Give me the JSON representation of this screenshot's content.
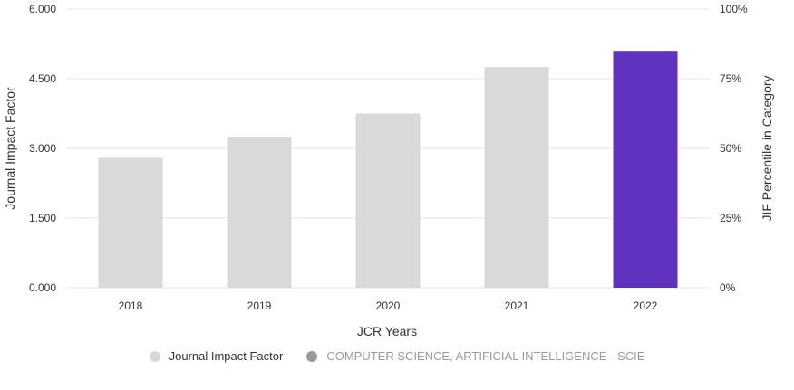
{
  "chart_data": {
    "type": "bar",
    "categories": [
      "2018",
      "2019",
      "2020",
      "2021",
      "2022"
    ],
    "series": [
      {
        "name": "Journal Impact Factor",
        "values": [
          2.8,
          3.25,
          3.75,
          4.75,
          5.1
        ]
      }
    ],
    "highlight_category": "2022",
    "xlabel": "JCR Years",
    "ylabel": "Journal Impact Factor",
    "ylabel_right": "JIF Percentile in Category",
    "ylim": [
      0,
      6
    ],
    "yticks": [
      "0.000",
      "1.500",
      "3.000",
      "4.500",
      "6.000"
    ],
    "ylim_right": [
      0,
      100
    ],
    "yticks_right": [
      "0%",
      "25%",
      "50%",
      "75%",
      "100%"
    ],
    "grid": true,
    "legend_position": "bottom",
    "legend": [
      {
        "label": "Journal Impact Factor",
        "marker_color": "#d9d9d9",
        "text_color": "#333333"
      },
      {
        "label": "COMPUTER SCIENCE, ARTIFICIAL INTELLIGENCE - SCIE",
        "marker_color": "#999999",
        "text_color": "#999999"
      }
    ]
  },
  "colors": {
    "bar_default": "#d9d9d9",
    "bar_highlight": "#5f33bf",
    "gridline": "#e6e6e6",
    "text": "#333333"
  }
}
